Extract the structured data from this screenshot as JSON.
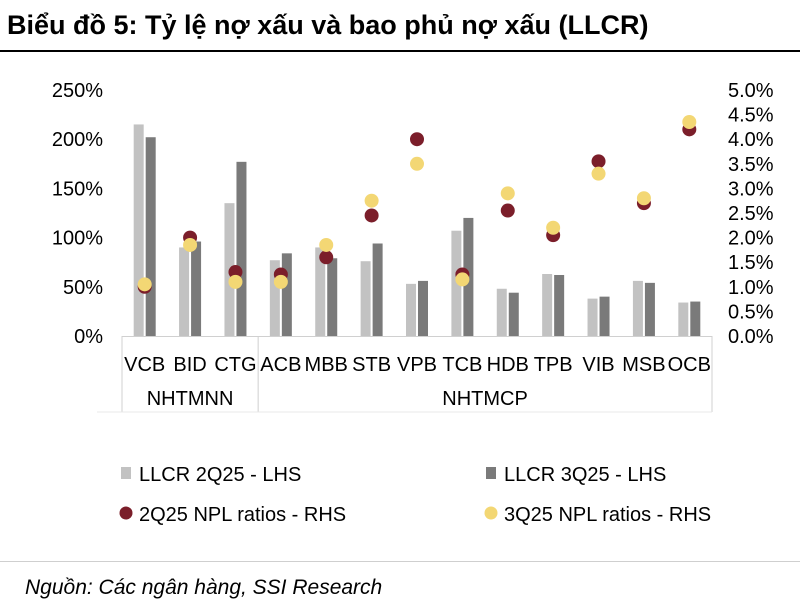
{
  "header": {
    "title": "Biểu đồ 5: Tỷ lệ nợ xấu và bao phủ nợ xấu (LLCR)"
  },
  "footer": {
    "source": "Nguồn: Các ngân hàng, SSI Research"
  },
  "colors": {
    "llcr_2q25": "#c2c2c2",
    "llcr_3q25": "#7a7a7a",
    "npl_2q25": "#7b1e2a",
    "npl_3q25": "#f3d774"
  },
  "chart_data": {
    "type": "bar",
    "title": "",
    "categories": [
      "VCB",
      "BID",
      "CTG",
      "ACB",
      "MBB",
      "STB",
      "VPB",
      "TCB",
      "HDB",
      "TPB",
      "VIB",
      "MSB",
      "OCB"
    ],
    "groups": [
      {
        "label": "NHTMNN",
        "categories": [
          "VCB",
          "BID",
          "CTG"
        ]
      },
      {
        "label": "NHTMCP",
        "categories": [
          "ACB",
          "MBB",
          "STB",
          "VPB",
          "TCB",
          "HDB",
          "TPB",
          "VIB",
          "MSB",
          "OCB"
        ]
      }
    ],
    "left_axis": {
      "ylim": [
        0,
        250
      ],
      "ticks": [
        "0%",
        "50%",
        "100%",
        "150%",
        "200%",
        "250%"
      ],
      "tick_values": [
        0,
        50,
        100,
        150,
        200,
        250
      ]
    },
    "right_axis": {
      "ylim": [
        0,
        5.0
      ],
      "ticks": [
        "0.0%",
        "0.5%",
        "1.0%",
        "1.5%",
        "2.0%",
        "2.5%",
        "3.0%",
        "3.5%",
        "4.0%",
        "4.5%",
        "5.0%"
      ],
      "tick_values": [
        0,
        0.5,
        1.0,
        1.5,
        2.0,
        2.5,
        3.0,
        3.5,
        4.0,
        4.5,
        5.0
      ]
    },
    "series": [
      {
        "name": "LLCR 2Q25 - LHS",
        "kind": "bar",
        "axis": "left",
        "values": [
          215,
          90,
          135,
          77,
          90,
          76,
          53,
          107,
          48,
          63,
          38,
          56,
          34
        ]
      },
      {
        "name": "LLCR 3Q25 - LHS",
        "kind": "bar",
        "axis": "left",
        "values": [
          202,
          96,
          177,
          84,
          79,
          94,
          56,
          120,
          44,
          62,
          40,
          54,
          35
        ]
      },
      {
        "name": "2Q25 NPL ratios - RHS",
        "kind": "scatter",
        "axis": "right",
        "values": [
          1.0,
          2.0,
          1.3,
          1.25,
          1.6,
          2.45,
          4.0,
          1.25,
          2.55,
          2.05,
          3.55,
          2.7,
          4.2
        ]
      },
      {
        "name": "3Q25 NPL ratios - RHS",
        "kind": "scatter",
        "axis": "right",
        "values": [
          1.05,
          1.85,
          1.1,
          1.1,
          1.85,
          2.75,
          3.5,
          1.15,
          2.9,
          2.2,
          3.3,
          2.8,
          4.35
        ]
      }
    ]
  }
}
